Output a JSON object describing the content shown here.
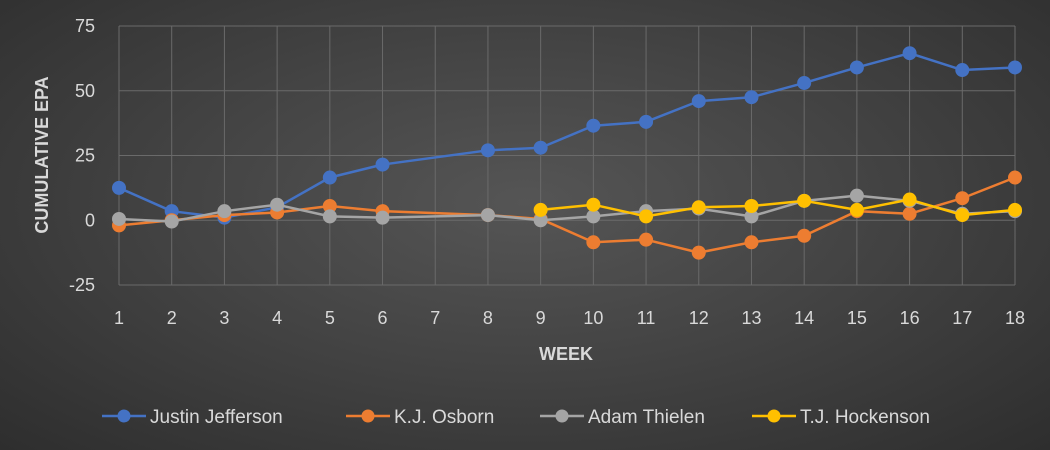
{
  "chart_data": {
    "type": "line",
    "xlabel": "WEEK",
    "ylabel": "CUMULATIVE EPA",
    "ylim": [
      -25,
      75
    ],
    "yticks": [
      -25,
      0,
      25,
      50,
      75
    ],
    "categories": [
      "1",
      "2",
      "3",
      "4",
      "5",
      "6",
      "7",
      "8",
      "9",
      "10",
      "11",
      "12",
      "13",
      "14",
      "15",
      "16",
      "17",
      "18"
    ],
    "grid": true,
    "legend_position": "bottom",
    "series": [
      {
        "name": "Justin Jefferson",
        "color": "#4472c4",
        "values": [
          12.5,
          3.5,
          1,
          5,
          16.5,
          21.5,
          null,
          27,
          28,
          36.5,
          38,
          46,
          47.5,
          53,
          59,
          64.5,
          58,
          59
        ]
      },
      {
        "name": "K.J. Osborn",
        "color": "#ed7d31",
        "values": [
          -2,
          0,
          2,
          3,
          5.5,
          3.5,
          null,
          2,
          0.5,
          -8.5,
          -7.5,
          -12.5,
          -8.5,
          -6,
          3.5,
          2.5,
          8.5,
          16.5
        ]
      },
      {
        "name": "Adam Thielen",
        "color": "#a5a5a5",
        "values": [
          0.5,
          -0.5,
          3.5,
          6,
          1.5,
          1,
          null,
          2,
          0,
          1.5,
          3.5,
          4.5,
          1.5,
          7.5,
          9.5,
          7.5,
          2.5,
          3.5
        ]
      },
      {
        "name": "T.J. Hockenson",
        "color": "#ffc000",
        "values": [
          null,
          null,
          null,
          null,
          null,
          null,
          null,
          null,
          4,
          6,
          1.5,
          5,
          5.5,
          7.5,
          4,
          8,
          2,
          4
        ]
      }
    ]
  }
}
